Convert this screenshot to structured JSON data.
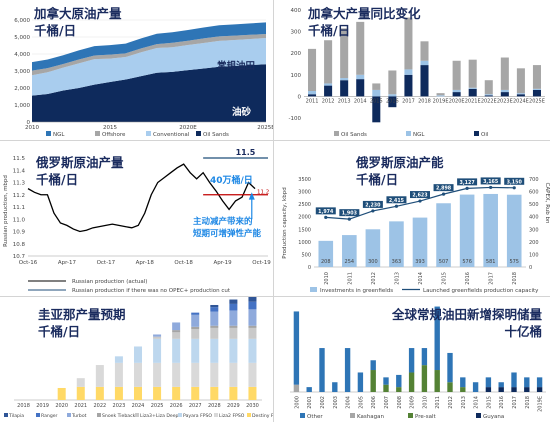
{
  "colors": {
    "oil_sands": "#0e2a5c",
    "conventional": "#a9cdee",
    "offshore": "#a6a6a6",
    "ngl": "#2e75b6",
    "diff_oil_sands": "#a6a6a6",
    "diff_ngl": "#9cc3e6",
    "diff_oil": "#0e2a5c",
    "russia_line": "#000000",
    "russia_target": "#1f4e79",
    "russia_cut": "#c00000",
    "annot_blue": "#1e88e5",
    "greenfield_bar": "#9dc3e6",
    "capacity_line": "#1f4e79",
    "title_navy": "#1a2b5e"
  },
  "panel1": {
    "title1": "加拿大原油产量",
    "title2": "千桶/日",
    "label_conventional": "常规油田",
    "label_oil_sands": "油砂",
    "chart_data": {
      "type": "area",
      "x": [
        2010,
        2011,
        2012,
        2013,
        2014,
        2015,
        2016,
        2017,
        2018,
        2019,
        2020,
        2021,
        2022,
        2023,
        2024,
        2025
      ],
      "x_tick_labels": [
        "2010",
        "2015",
        "2020E",
        "2025E"
      ],
      "series": [
        {
          "name": "Oil Sands",
          "values": [
            1550,
            1650,
            1850,
            2000,
            2200,
            2350,
            2500,
            2700,
            2900,
            2950,
            3050,
            3150,
            3250,
            3300,
            3350,
            3400
          ]
        },
        {
          "name": "Conventional",
          "values": [
            1200,
            1280,
            1350,
            1450,
            1500,
            1380,
            1320,
            1400,
            1450,
            1450,
            1480,
            1500,
            1520,
            1520,
            1530,
            1540
          ]
        },
        {
          "name": "Offshore",
          "values": [
            270,
            240,
            210,
            230,
            210,
            230,
            220,
            230,
            230,
            260,
            250,
            270,
            270,
            260,
            250,
            240
          ]
        },
        {
          "name": "NGL",
          "values": [
            500,
            510,
            520,
            530,
            550,
            560,
            570,
            590,
            610,
            620,
            630,
            640,
            650,
            660,
            670,
            680
          ]
        }
      ],
      "ylim": [
        0,
        6000
      ],
      "yticks": [
        "0",
        "1,000",
        "2,000",
        "3,000",
        "4,000",
        "5,000",
        "6,000"
      ],
      "legend": [
        "NGL",
        "Offshore",
        "Conventional",
        "Oil Sands"
      ]
    }
  },
  "panel2": {
    "title1": "加拿大产量同比变化",
    "title2": "千桶/日",
    "chart_data": {
      "type": "bar",
      "categories": [
        "2011",
        "2012",
        "2013",
        "2014",
        "2015",
        "2016",
        "2017",
        "2018",
        "2019E",
        "2020E",
        "2021E",
        "2022E",
        "2023E",
        "2024E",
        "2025E"
      ],
      "series": [
        {
          "name": "Oil Sands",
          "values": [
            195,
            200,
            230,
            245,
            30,
            110,
            240,
            90,
            10,
            135,
            130,
            65,
            150,
            115,
            110
          ]
        },
        {
          "name": "NGL",
          "values": [
            15,
            10,
            10,
            20,
            30,
            10,
            25,
            20,
            5,
            10,
            5,
            5,
            10,
            5,
            5
          ]
        },
        {
          "name": "Oil",
          "values": [
            10,
            50,
            75,
            80,
            -120,
            -50,
            100,
            145,
            0,
            20,
            35,
            5,
            20,
            10,
            30
          ]
        }
      ],
      "ylim": [
        -100,
        400
      ],
      "yticks": [
        "-100",
        "0",
        "100",
        "200",
        "300",
        "400"
      ],
      "legend": [
        "Oil Sands",
        "NGL",
        "Oil"
      ]
    }
  },
  "panel3": {
    "title1": "俄罗斯原油产量",
    "title2": "千桶/日",
    "ylabel": "Russian production, mbpd",
    "target_label": "11.5",
    "cut_label": "11.2",
    "annot_capacity": "40万桶/日",
    "annot_spare": "主动减产带来的",
    "annot_spare2": "短期可增弹性产能",
    "chart_data": {
      "type": "line",
      "x_tick_labels": [
        "Oct-16",
        "Apr-17",
        "Oct-17",
        "Apr-18",
        "Oct-18",
        "Apr-19",
        "Oct-19"
      ],
      "x_index_months": [
        0,
        6,
        12,
        18,
        24,
        30,
        36
      ],
      "series": [
        {
          "name": "Russian production (actual)",
          "x": [
            0,
            1,
            2,
            3,
            4,
            5,
            6,
            7,
            8,
            9,
            10,
            11,
            12,
            13,
            14,
            15,
            16,
            17,
            18,
            19,
            20,
            21,
            22,
            23,
            24,
            25,
            26,
            27,
            28,
            29,
            30,
            31,
            32,
            33,
            34,
            35
          ],
          "values": [
            11.25,
            11.22,
            11.2,
            11.2,
            11.05,
            10.97,
            10.95,
            10.92,
            10.9,
            10.91,
            10.93,
            10.94,
            10.95,
            10.96,
            10.95,
            10.94,
            10.93,
            10.95,
            11.05,
            11.2,
            11.3,
            11.34,
            11.38,
            11.42,
            11.45,
            11.38,
            11.33,
            11.38,
            11.3,
            11.23,
            11.15,
            11.08,
            11.15,
            11.18,
            11.3,
            11.25
          ]
        }
      ],
      "target_value": 11.5,
      "cut_value": 11.2,
      "ylim": [
        10.7,
        11.5
      ],
      "yticks": [
        "10.7",
        "10.8",
        "10.9",
        "11.0",
        "11.1",
        "11.2",
        "11.3",
        "11.4",
        "11.5"
      ],
      "legend": [
        "Russian production (actual)",
        "Russian production if there was no OPEC+ production cut"
      ]
    }
  },
  "panel4": {
    "title1": "俄罗斯原油产能",
    "title2": "千桶/日",
    "ylabel_left": "Production capacity, kbpd",
    "ylabel_right": "CAPEX, Rub bn",
    "chart_data": {
      "type": "bar",
      "categories": [
        "2010",
        "2011",
        "2012",
        "2013",
        "2014",
        "2015",
        "2016",
        "2017",
        "2018"
      ],
      "series": [
        {
          "name": "Investments in greenfields",
          "values": [
            208,
            254,
            300,
            363,
            393,
            507,
            576,
            581,
            575
          ]
        },
        {
          "name": "Launched greenfields production capacity",
          "values": [
            1974,
            1903,
            2230,
            2415,
            2623,
            2898,
            3127,
            3165,
            3150
          ]
        }
      ],
      "left_ylim": [
        0,
        3500
      ],
      "left_yticks": [
        "0",
        "500",
        "1000",
        "1500",
        "2000",
        "2500",
        "3000",
        "3500"
      ],
      "right_ylim": [
        0,
        700
      ],
      "right_yticks": [
        "0",
        "100",
        "200",
        "300",
        "400",
        "500",
        "600",
        "700"
      ],
      "legend": [
        "Investments in greenfields",
        "Launched greenfields production capacity"
      ]
    }
  },
  "panel5": {
    "title1": "圭亚那产量预期",
    "title2": "千桶/日",
    "chart_data": {
      "type": "bar",
      "categories": [
        "2018",
        "2019",
        "2020",
        "2021",
        "2022",
        "2023",
        "2024",
        "2025",
        "2026",
        "2027",
        "2028",
        "2029",
        "2030"
      ],
      "series": [
        {
          "name": "Tilapia",
          "values": [
            0,
            0,
            0,
            0,
            0,
            0,
            0,
            0,
            0,
            0,
            20,
            40,
            60
          ]
        },
        {
          "name": "Ranger",
          "values": [
            0,
            0,
            0,
            0,
            0,
            0,
            0,
            0,
            0,
            20,
            40,
            60,
            70
          ]
        },
        {
          "name": "Turbot",
          "values": [
            0,
            0,
            0,
            0,
            0,
            0,
            0,
            20,
            70,
            110,
            130,
            140,
            150
          ]
        },
        {
          "name": "Snoek Tieback",
          "values": [
            0,
            0,
            0,
            0,
            0,
            0,
            0,
            0,
            20,
            20,
            20,
            20,
            20
          ]
        },
        {
          "name": "Liza3+Liza Deep",
          "values": [
            0,
            0,
            0,
            0,
            0,
            0,
            0,
            20,
            60,
            90,
            100,
            100,
            100
          ]
        },
        {
          "name": "Payara FPSO",
          "values": [
            0,
            0,
            0,
            0,
            0,
            60,
            150,
            220,
            220,
            220,
            220,
            220,
            220
          ]
        },
        {
          "name": "Liza2 FPSO",
          "values": [
            0,
            0,
            0,
            80,
            200,
            220,
            220,
            220,
            220,
            220,
            220,
            220,
            220
          ]
        },
        {
          "name": "Destiny FPSO",
          "values": [
            0,
            0,
            110,
            120,
            120,
            120,
            120,
            120,
            120,
            120,
            120,
            120,
            120
          ]
        }
      ],
      "legend": [
        "Tilapia",
        "Ranger",
        "Turbot",
        "Snoek Tieback",
        "Liza3+Liza Deep",
        "Payara FPSO",
        "Liza2 FPSO",
        "Destiny FPSO"
      ]
    }
  },
  "panel6": {
    "title1": "全球常规油田新增探明储量",
    "title2": "十亿桶",
    "chart_data": {
      "type": "bar",
      "categories": [
        "2000",
        "2001",
        "2002",
        "2003",
        "2004",
        "2005",
        "2006",
        "2007",
        "2008",
        "2009",
        "2010",
        "2011",
        "2012",
        "2013",
        "2014",
        "2015",
        "2016",
        "2017",
        "2018",
        "2019E"
      ],
      "series": [
        {
          "name": "Other",
          "values": [
            15.0,
            1.0,
            9.0,
            2.0,
            9.0,
            4.0,
            2.0,
            1.5,
            2.5,
            5.0,
            3.5,
            13.0,
            6.0,
            2.0,
            2.0,
            2.0,
            1.0,
            3.0,
            2.0,
            2.0
          ]
        },
        {
          "name": "Kashagan",
          "values": [
            1.5,
            0,
            0,
            0,
            0,
            0,
            0,
            0,
            0,
            0,
            0,
            0,
            0,
            0,
            0,
            0,
            0,
            0,
            0,
            0
          ]
        },
        {
          "name": "Pre-salt",
          "values": [
            0,
            0,
            0,
            0,
            0,
            0,
            4.5,
            1.5,
            1.0,
            4.0,
            5.5,
            4.5,
            2.0,
            1.0,
            0,
            0,
            0,
            0,
            0,
            0
          ]
        },
        {
          "name": "Guyana",
          "values": [
            0,
            0,
            0,
            0,
            0,
            0,
            0,
            0,
            0,
            0,
            0,
            0,
            0,
            0,
            0,
            1.0,
            1.0,
            1.0,
            1.0,
            1.0
          ]
        }
      ],
      "ylim": [
        0,
        17
      ],
      "legend": [
        "Other",
        "Kashagan",
        "Pre-salt",
        "Guyana"
      ]
    }
  }
}
